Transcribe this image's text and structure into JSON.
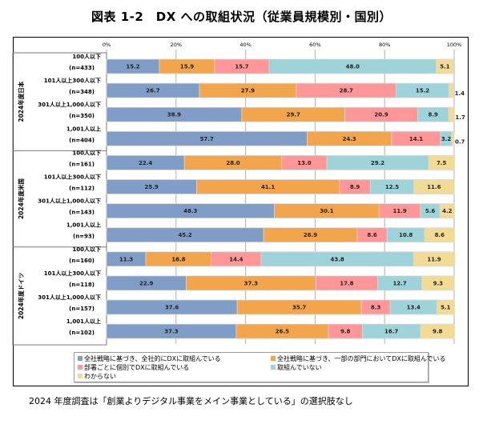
{
  "title": "図表 1-2　DX への取組状況（従業員規模別・国別）",
  "note": "2024 年度調査は「創業よりデジタル事業をメイン事業としている」の選択肢なし",
  "chart_data": {
    "type": "bar",
    "orientation": "horizontal",
    "stacked": true,
    "normalized": true,
    "title": "図表 1-2　DX への取組状況（従業員規模別・国別）",
    "xlabel": "",
    "ylabel": "",
    "xlim": [
      0,
      100
    ],
    "x_ticks": [
      "0%",
      "20%",
      "40%",
      "60%",
      "80%",
      "100%"
    ],
    "x_tick_values": [
      0,
      20,
      40,
      60,
      80,
      100
    ],
    "grid": true,
    "legend_position": "bottom",
    "groups": [
      {
        "name": "2024年度日本",
        "rows": [
          0,
          1,
          2,
          3
        ]
      },
      {
        "name": "2024年度米国",
        "rows": [
          4,
          5,
          6,
          7
        ]
      },
      {
        "name": "2024年度ドイツ",
        "rows": [
          8,
          9,
          10,
          11
        ]
      }
    ],
    "categories": [
      {
        "label": "100人以下",
        "n": "(n=433)"
      },
      {
        "label": "101人以上300人以下",
        "n": "(n=348)"
      },
      {
        "label": "301人以上1,000人以下",
        "n": "(n=350)"
      },
      {
        "label": "1,001人以上",
        "n": "(n=404)"
      },
      {
        "label": "100人以下",
        "n": "(n=161)"
      },
      {
        "label": "101人以上300人以下",
        "n": "(n=112)"
      },
      {
        "label": "301人以上1,000人以下",
        "n": "(n=143)"
      },
      {
        "label": "1,001人以上",
        "n": "(n=93)"
      },
      {
        "label": "100人以下",
        "n": "(n=160)"
      },
      {
        "label": "101人以上300人以下",
        "n": "(n=118)"
      },
      {
        "label": "301人以上1,000人以下",
        "n": "(n=157)"
      },
      {
        "label": "1,001人以上",
        "n": "(n=102)"
      }
    ],
    "series": [
      {
        "name": "全社戦略に基づき、全社的にDXに取組んでいる",
        "color": "#7f9dc6",
        "values": [
          15.2,
          26.7,
          38.9,
          57.7,
          22.4,
          25.9,
          48.3,
          45.2,
          11.3,
          22.9,
          37.6,
          37.3
        ]
      },
      {
        "name": "全社戦略に基づき、一部の部門においてDXに取組んでいる",
        "color": "#f2a54a",
        "values": [
          15.9,
          27.9,
          29.7,
          24.3,
          28.0,
          41.1,
          30.1,
          26.9,
          18.8,
          37.3,
          35.7,
          26.5
        ]
      },
      {
        "name": "部署ごとに個別でDXに取組んでいる",
        "color": "#ff9697",
        "values": [
          15.7,
          28.7,
          20.9,
          14.1,
          13.0,
          8.9,
          11.9,
          8.6,
          14.4,
          17.8,
          8.3,
          9.8
        ]
      },
      {
        "name": "取組んでいない",
        "color": "#9dd3d9",
        "values": [
          48.0,
          15.2,
          8.9,
          3.2,
          29.2,
          12.5,
          5.6,
          10.8,
          43.8,
          12.7,
          13.4,
          16.7
        ]
      },
      {
        "name": "わからない",
        "color": "#f2dc95",
        "values": [
          5.1,
          1.4,
          1.7,
          0.7,
          7.5,
          11.6,
          4.2,
          8.6,
          11.9,
          9.3,
          5.1,
          9.8
        ]
      }
    ]
  }
}
